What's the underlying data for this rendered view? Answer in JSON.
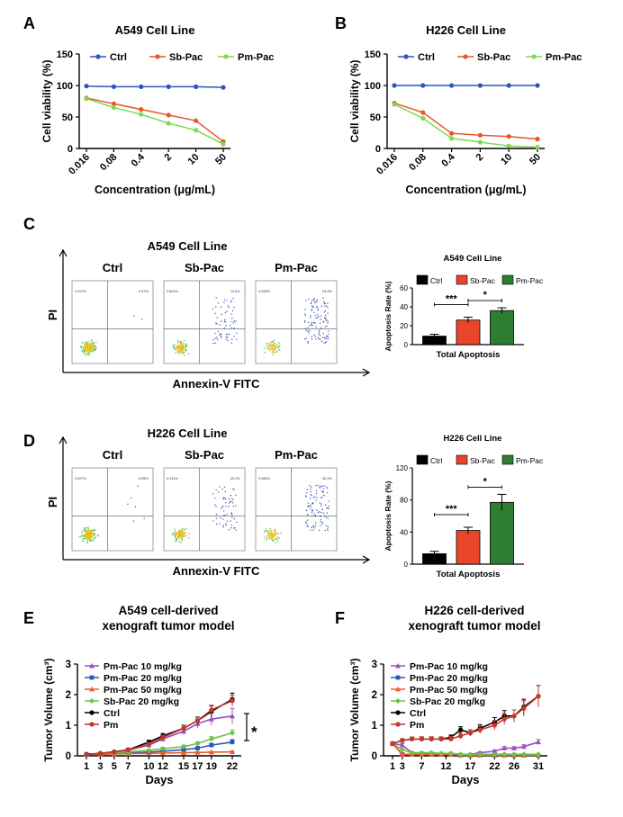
{
  "figure": {
    "panel_letters": [
      "A",
      "B",
      "C",
      "D",
      "E",
      "F"
    ]
  },
  "colors": {
    "ctrl_line": "#2a57b8",
    "sbpac_line": "#e8572a",
    "pmpac_line": "#7ed957",
    "bar_ctrl": "#000000",
    "bar_sbpac": "#e8452a",
    "bar_pmpac": "#2e7d32",
    "xeno_pm10": "#9b4fc2",
    "xeno_pm20": "#2a57b8",
    "xeno_pm50": "#f05a28",
    "xeno_sb20": "#6cc24a",
    "xeno_ctrl": "#000000",
    "xeno_pm": "#c0392b"
  },
  "flow": {
    "C": {
      "title": "A549 Cell Line",
      "sample_labels": [
        "Ctrl",
        "Sb-Pac",
        "Pm-Pac"
      ],
      "y_label": "PI",
      "x_label": "Annexin-V FITC",
      "q1": [
        "0.297%",
        "0.801%",
        "0.008%"
      ],
      "q2": [
        "0.47%",
        "12.6%",
        "23.4%"
      ]
    },
    "D": {
      "title": "H226 Cell Line",
      "sample_labels": [
        "Ctrl",
        "Sb-Pac",
        "Pm-Pac"
      ],
      "y_label": "PI",
      "x_label": "Annexin-V FITC",
      "q1": [
        "0.027%",
        "0.241%",
        "0.088%"
      ],
      "q2": [
        "5.05%",
        "20.2%",
        "32.4%"
      ]
    }
  },
  "chart_data": [
    {
      "panel": "A",
      "type": "line",
      "title": "A549 Cell Line",
      "xlabel": "Concentration (μg/mL)",
      "ylabel": "Cell viability (%)",
      "categories": [
        "0.016",
        "0.08",
        "0.4",
        "2",
        "10",
        "50"
      ],
      "ylim": [
        0,
        150
      ],
      "yticks": [
        0,
        50,
        100,
        150
      ],
      "legend_position": "top",
      "series": [
        {
          "name": "Ctrl",
          "values": [
            99,
            98,
            98,
            98,
            98,
            97
          ]
        },
        {
          "name": "Sb-Pac",
          "values": [
            80,
            71,
            62,
            53,
            44,
            11
          ]
        },
        {
          "name": "Pm-Pac",
          "values": [
            79,
            65,
            54,
            40,
            29,
            7
          ]
        }
      ]
    },
    {
      "panel": "B",
      "type": "line",
      "title": "H226 Cell Line",
      "xlabel": "Concentration (μg/mL)",
      "ylabel": "Cell viability (%)",
      "categories": [
        "0.016",
        "0.08",
        "0.4",
        "2",
        "10",
        "50"
      ],
      "ylim": [
        0,
        150
      ],
      "yticks": [
        0,
        50,
        100,
        150
      ],
      "legend_position": "top",
      "series": [
        {
          "name": "Ctrl",
          "values": [
            100,
            100,
            100,
            100,
            100,
            100
          ]
        },
        {
          "name": "Sb-Pac",
          "values": [
            72,
            57,
            24,
            21,
            19,
            15
          ]
        },
        {
          "name": "Pm-Pac",
          "values": [
            70,
            48,
            16,
            10,
            4,
            2
          ]
        }
      ]
    },
    {
      "panel": "C",
      "type": "bar",
      "title": "A549 Cell Line",
      "ylabel": "Apoptosis Rate (%)",
      "xlabel": "Total Apoptosis",
      "categories": [
        "Ctrl",
        "Sb-Pac",
        "Pm-Pac"
      ],
      "values": [
        9,
        26,
        36
      ],
      "errors": [
        2,
        3,
        3
      ],
      "ylim": [
        0,
        60
      ],
      "yticks": [
        0,
        20,
        40,
        60
      ],
      "significance": [
        {
          "from": 0,
          "to": 1,
          "label": "***"
        },
        {
          "from": 1,
          "to": 2,
          "label": "*"
        }
      ]
    },
    {
      "panel": "D",
      "type": "bar",
      "title": "H226 Cell Line",
      "ylabel": "Apoptosis Rate (%)",
      "xlabel": "Total Apoptosis",
      "categories": [
        "Ctrl",
        "Sb-Pac",
        "Pm-Pac"
      ],
      "values": [
        13,
        42,
        77
      ],
      "errors": [
        3,
        4,
        10
      ],
      "ylim": [
        0,
        120
      ],
      "yticks": [
        0,
        40,
        80,
        120
      ],
      "significance": [
        {
          "from": 0,
          "to": 1,
          "label": "***"
        },
        {
          "from": 1,
          "to": 2,
          "label": "*"
        }
      ]
    },
    {
      "panel": "E",
      "type": "line",
      "title": "A549 cell-derived xenograft tumor model",
      "title_lines": [
        "A549 cell-derived",
        "xenograft tumor model"
      ],
      "xlabel": "Days",
      "ylabel": "Tumor Volume (cm³)",
      "x": [
        1,
        3,
        5,
        7,
        10,
        12,
        15,
        17,
        19,
        22
      ],
      "xticks": [
        1,
        3,
        5,
        7,
        10,
        12,
        15,
        17,
        19,
        22
      ],
      "ylim": [
        0,
        3
      ],
      "yticks": [
        0,
        1,
        2,
        3
      ],
      "annotation": "*",
      "series": [
        {
          "name": "Pm-Pac 10 mg/kg",
          "values": [
            0.05,
            0.07,
            0.12,
            0.18,
            0.35,
            0.55,
            0.8,
            1.05,
            1.2,
            1.3
          ],
          "errors": [
            0.02,
            0.02,
            0.03,
            0.04,
            0.06,
            0.08,
            0.1,
            0.15,
            0.2,
            0.25
          ]
        },
        {
          "name": "Pm-Pac 20 mg/kg",
          "values": [
            0.05,
            0.06,
            0.07,
            0.09,
            0.12,
            0.15,
            0.2,
            0.25,
            0.35,
            0.45
          ],
          "errors": [
            0.01,
            0.01,
            0.02,
            0.02,
            0.03,
            0.03,
            0.04,
            0.05,
            0.06,
            0.08
          ]
        },
        {
          "name": "Pm-Pac 50 mg/kg",
          "values": [
            0.05,
            0.05,
            0.06,
            0.07,
            0.08,
            0.09,
            0.1,
            0.11,
            0.12,
            0.13
          ],
          "errors": [
            0.01,
            0.01,
            0.01,
            0.01,
            0.01,
            0.02,
            0.02,
            0.02,
            0.02,
            0.02
          ]
        },
        {
          "name": "Sb-Pac 20 mg/kg",
          "values": [
            0.05,
            0.07,
            0.1,
            0.13,
            0.18,
            0.23,
            0.3,
            0.4,
            0.55,
            0.75
          ],
          "errors": [
            0.01,
            0.02,
            0.02,
            0.03,
            0.03,
            0.04,
            0.05,
            0.06,
            0.08,
            0.1
          ]
        },
        {
          "name": "Ctrl",
          "values": [
            0.05,
            0.08,
            0.13,
            0.2,
            0.45,
            0.65,
            0.9,
            1.15,
            1.45,
            1.85
          ],
          "errors": [
            0.02,
            0.02,
            0.03,
            0.04,
            0.06,
            0.08,
            0.1,
            0.12,
            0.18,
            0.2
          ]
        },
        {
          "name": "Pm",
          "values": [
            0.05,
            0.08,
            0.12,
            0.2,
            0.38,
            0.6,
            0.9,
            1.15,
            1.5,
            1.8
          ],
          "errors": [
            0.02,
            0.02,
            0.03,
            0.04,
            0.05,
            0.07,
            0.09,
            0.11,
            0.15,
            0.18
          ]
        }
      ]
    },
    {
      "panel": "F",
      "type": "line",
      "title": "H226 cell-derived xenograft tumor model",
      "title_lines": [
        "H226 cell-derived",
        "xenograft tumor model"
      ],
      "xlabel": "Days",
      "ylabel": "Tumor Volume (cm³)",
      "x": [
        1,
        3,
        5,
        7,
        9,
        11,
        13,
        15,
        17,
        19,
        22,
        24,
        26,
        28,
        31
      ],
      "xticks": [
        1,
        3,
        7,
        12,
        17,
        22,
        26,
        31
      ],
      "ylim": [
        0,
        3
      ],
      "yticks": [
        0,
        1,
        2,
        3
      ],
      "series": [
        {
          "name": "Pm-Pac 10 mg/kg",
          "values": [
            0.4,
            0.35,
            0.1,
            0.08,
            0.08,
            0.08,
            0.08,
            0.05,
            0.05,
            0.1,
            0.15,
            0.25,
            0.25,
            0.3,
            0.45
          ],
          "errors": [
            0.05,
            0.05,
            0.03,
            0.03,
            0.03,
            0.03,
            0.03,
            0.02,
            0.02,
            0.03,
            0.04,
            0.05,
            0.05,
            0.06,
            0.08
          ]
        },
        {
          "name": "Pm-Pac 20 mg/kg",
          "values": [
            0.4,
            0.05,
            0.05,
            0.05,
            0.05,
            0.05,
            0.05,
            0.02,
            0.02,
            0.02,
            0.02,
            0.02,
            0.02,
            0.02,
            0.02
          ],
          "errors": [
            0.05,
            0.02,
            0.02,
            0.02,
            0.02,
            0.02,
            0.02,
            0.01,
            0.01,
            0.01,
            0.01,
            0.01,
            0.01,
            0.01,
            0.01
          ]
        },
        {
          "name": "Pm-Pac 50 mg/kg",
          "values": [
            0.4,
            0.05,
            0.05,
            0.05,
            0.05,
            0.05,
            0.05,
            0.02,
            0.02,
            0.02,
            0.02,
            0.02,
            0.02,
            0.02,
            0.02
          ],
          "errors": [
            0.05,
            0.02,
            0.02,
            0.02,
            0.02,
            0.02,
            0.02,
            0.01,
            0.01,
            0.01,
            0.01,
            0.01,
            0.01,
            0.01,
            0.01
          ]
        },
        {
          "name": "Sb-Pac 20 mg/kg",
          "values": [
            0.4,
            0.2,
            0.1,
            0.1,
            0.1,
            0.08,
            0.08,
            0.05,
            0.05,
            0.05,
            0.05,
            0.05,
            0.05,
            0.05,
            0.05
          ],
          "errors": [
            0.05,
            0.04,
            0.03,
            0.03,
            0.03,
            0.03,
            0.03,
            0.02,
            0.02,
            0.02,
            0.02,
            0.02,
            0.02,
            0.02,
            0.02
          ]
        },
        {
          "name": "Ctrl",
          "values": [
            0.4,
            0.5,
            0.55,
            0.55,
            0.55,
            0.55,
            0.6,
            0.85,
            0.75,
            0.9,
            1.1,
            1.3,
            1.3,
            1.6,
            1.95
          ],
          "errors": [
            0.05,
            0.06,
            0.06,
            0.07,
            0.07,
            0.07,
            0.08,
            0.1,
            0.1,
            0.12,
            0.15,
            0.18,
            0.2,
            0.25,
            0.35
          ]
        },
        {
          "name": "Pm",
          "values": [
            0.4,
            0.5,
            0.55,
            0.55,
            0.55,
            0.55,
            0.55,
            0.65,
            0.75,
            0.85,
            1.0,
            1.2,
            1.3,
            1.55,
            1.95
          ],
          "errors": [
            0.05,
            0.06,
            0.06,
            0.07,
            0.07,
            0.07,
            0.08,
            0.09,
            0.1,
            0.12,
            0.15,
            0.18,
            0.2,
            0.25,
            0.35
          ]
        }
      ]
    }
  ]
}
